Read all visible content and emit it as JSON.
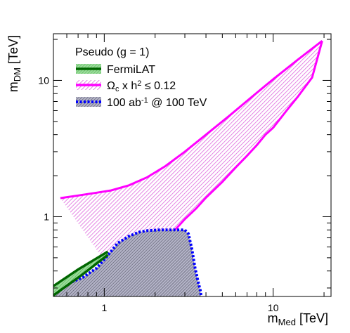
{
  "chart_data": {
    "type": "area",
    "title": "",
    "xlabel": {
      "main": "m",
      "sub": "Med",
      "unit": " [TeV]"
    },
    "ylabel": {
      "main": "m",
      "sub": "DM",
      "unit": " [TeV]"
    },
    "xscale": "log",
    "yscale": "log",
    "xlim": [
      0.5,
      22
    ],
    "ylim": [
      0.26,
      22
    ],
    "xticks": [
      {
        "value": 1,
        "label": "1"
      },
      {
        "value": 10,
        "label": "10"
      }
    ],
    "yticks": [
      {
        "value": 1,
        "label": "1"
      },
      {
        "value": 10,
        "label": "10"
      }
    ],
    "grid": false,
    "legend": {
      "placement": "top-left",
      "header": "Pseudo (g = 1)",
      "entries": [
        {
          "id": "fermi",
          "label": "FermiLAT"
        },
        {
          "id": "relic",
          "label_parts": [
            "Ω",
            "c",
            " x h",
            "2",
            " ≤ 0.12"
          ]
        },
        {
          "id": "collider",
          "label_parts": [
            "100 ab",
            "-1",
            " @ 100 TeV"
          ]
        }
      ]
    },
    "series": [
      {
        "id": "relic",
        "color": "#ff00ff",
        "fill_color": "#e699e6",
        "upper": {
          "x": [
            0.55,
            0.7,
            0.9,
            1.1,
            1.4,
            1.8,
            2.3,
            3.0,
            4.0,
            5.5,
            7.5,
            10,
            14,
            19.5
          ],
          "y": [
            1.37,
            1.43,
            1.5,
            1.56,
            1.7,
            1.95,
            2.35,
            3.0,
            4.0,
            5.5,
            7.6,
            10.2,
            14.2,
            19.5
          ]
        },
        "lower": {
          "x": [
            1.12,
            1.15,
            1.2,
            1.3,
            1.45,
            1.6,
            1.8,
            2.0,
            2.3,
            2.6,
            3.0,
            3.5,
            4.0,
            5.0,
            6.0,
            7.0,
            8.0,
            9.0,
            10.0,
            12.0,
            14.0,
            17.0,
            19.5
          ],
          "y": [
            0.29,
            0.34,
            0.41,
            0.45,
            0.44,
            0.47,
            0.48,
            0.56,
            0.66,
            0.79,
            0.96,
            1.15,
            1.38,
            1.8,
            2.3,
            2.8,
            3.35,
            4.0,
            4.5,
            6.0,
            7.6,
            10.5,
            19.5
          ]
        },
        "left_edge": {
          "x": [
            0.55,
            0.95
          ],
          "y": [
            1.37,
            0.52
          ]
        }
      },
      {
        "id": "collider",
        "color": "#0000ff",
        "fill_color": "#9999b3",
        "boundary": {
          "x": [
            0.5,
            0.6,
            0.75,
            0.9,
            1.05,
            1.2,
            1.4,
            1.6,
            1.8,
            2.1,
            2.4,
            2.7,
            3.0,
            3.15,
            3.3,
            3.45,
            3.6,
            3.7,
            3.75
          ],
          "y": [
            0.3,
            0.32,
            0.36,
            0.42,
            0.52,
            0.64,
            0.72,
            0.77,
            0.79,
            0.8,
            0.8,
            0.8,
            0.8,
            0.75,
            0.58,
            0.42,
            0.33,
            0.29,
            0.26
          ]
        }
      },
      {
        "id": "fermi",
        "color": "#006600",
        "fill_color": "#66cc66",
        "upper": {
          "x": [
            0.5,
            0.7,
            1.05
          ],
          "y": [
            0.31,
            0.41,
            0.555
          ]
        },
        "lower": {
          "x": [
            0.5,
            0.75,
            1.05
          ],
          "y": [
            0.265,
            0.38,
            0.525
          ]
        }
      }
    ]
  }
}
